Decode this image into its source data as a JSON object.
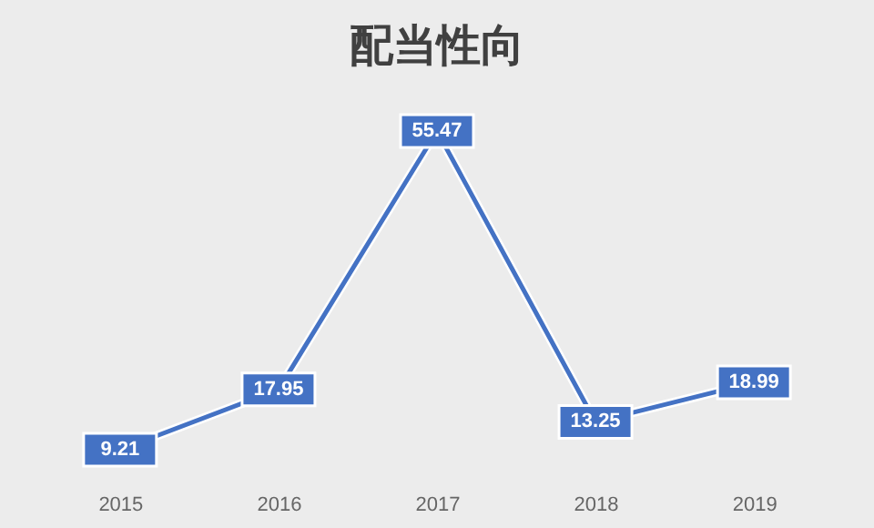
{
  "chart_data": {
    "type": "line",
    "title": "配当性向",
    "categories": [
      "2015",
      "2016",
      "2017",
      "2018",
      "2019"
    ],
    "series": [
      {
        "color": "#4472c4",
        "values": [
          9.21,
          17.95,
          55.47,
          13.25,
          18.99
        ]
      }
    ],
    "data_labels": true,
    "marker": "square",
    "line_style": "solid",
    "grid": false,
    "legend": false,
    "tick_labels": "x"
  }
}
